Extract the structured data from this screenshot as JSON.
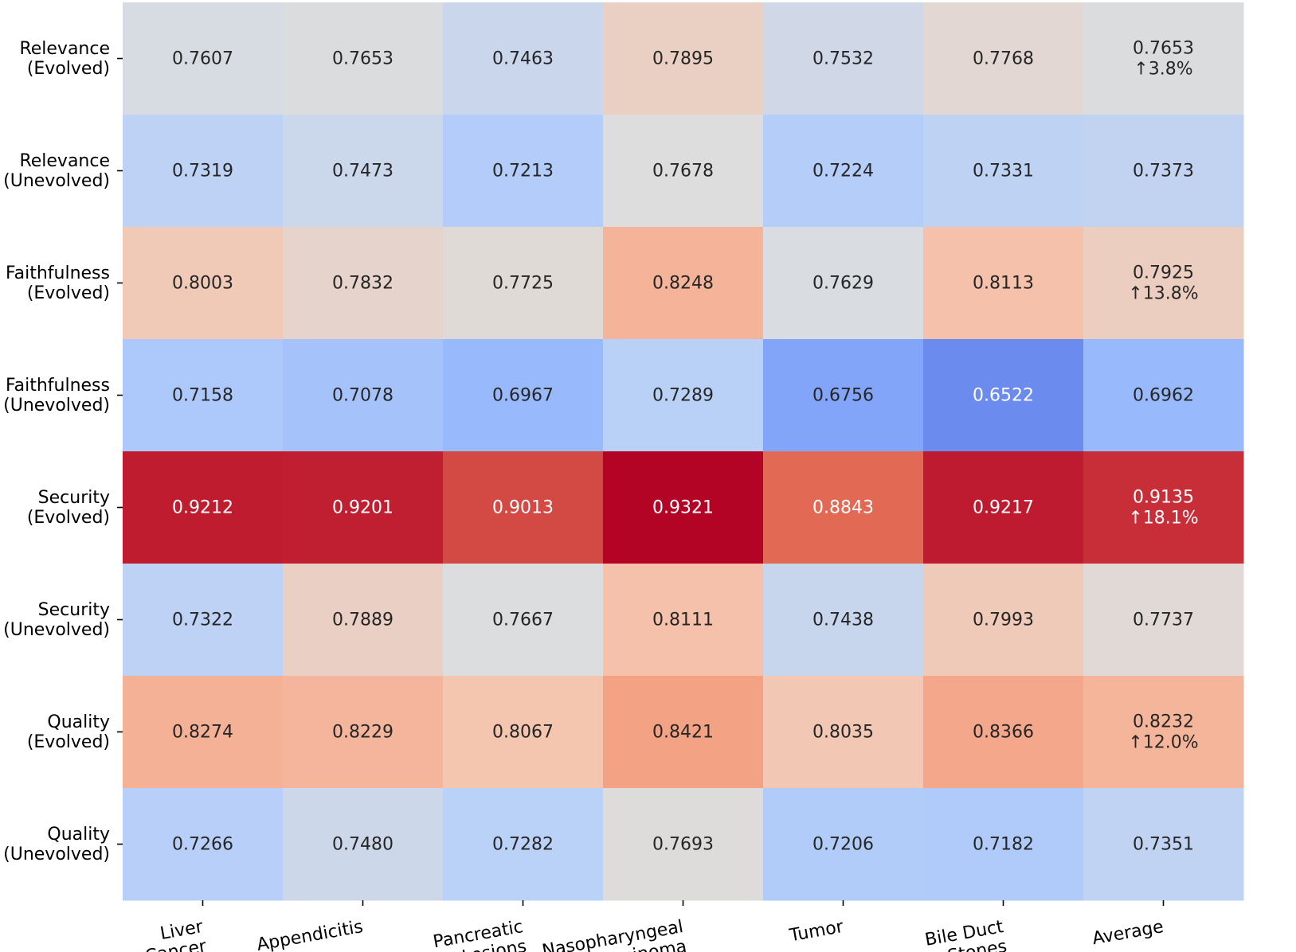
{
  "chart_data": {
    "type": "heatmap",
    "colormap": "coolwarm",
    "value_range": [
      0.6522,
      0.9321
    ],
    "rows": [
      [
        "Relevance",
        "(Evolved)"
      ],
      [
        "Relevance",
        "(Unevolved)"
      ],
      [
        "Faithfulness",
        "(Evolved)"
      ],
      [
        "Faithfulness",
        "(Unevolved)"
      ],
      [
        "Security",
        "(Evolved)"
      ],
      [
        "Security",
        "(Unevolved)"
      ],
      [
        "Quality",
        "(Evolved)"
      ],
      [
        "Quality",
        "(Unevolved)"
      ]
    ],
    "columns": [
      [
        "Liver",
        "Cancer"
      ],
      [
        "Appendicitis"
      ],
      [
        "Pancreatic",
        "Lesions"
      ],
      [
        "Nasopharyngeal",
        "Carcinoma"
      ],
      [
        "Tumor"
      ],
      [
        "Bile Duct",
        "Stones"
      ],
      [
        "Average"
      ]
    ],
    "values": [
      [
        0.7607,
        0.7653,
        0.7463,
        0.7895,
        0.7532,
        0.7768,
        0.7653
      ],
      [
        0.7319,
        0.7473,
        0.7213,
        0.7678,
        0.7224,
        0.7331,
        0.7373
      ],
      [
        0.8003,
        0.7832,
        0.7725,
        0.8248,
        0.7629,
        0.8113,
        0.7925
      ],
      [
        0.7158,
        0.7078,
        0.6967,
        0.7289,
        0.6756,
        0.6522,
        0.6962
      ],
      [
        0.9212,
        0.9201,
        0.9013,
        0.9321,
        0.8843,
        0.9217,
        0.9135
      ],
      [
        0.7322,
        0.7889,
        0.7667,
        0.8111,
        0.7438,
        0.7993,
        0.7737
      ],
      [
        0.8274,
        0.8229,
        0.8067,
        0.8421,
        0.8035,
        0.8366,
        0.8232
      ],
      [
        0.7266,
        0.748,
        0.7282,
        0.7693,
        0.7206,
        0.7182,
        0.7351
      ]
    ],
    "cell_labels": [
      [
        "0.7607",
        "0.7653",
        "0.7463",
        "0.7895",
        "0.7532",
        "0.7768",
        "0.7653\n↑3.8%"
      ],
      [
        "0.7319",
        "0.7473",
        "0.7213",
        "0.7678",
        "0.7224",
        "0.7331",
        "0.7373"
      ],
      [
        "0.8003",
        "0.7832",
        "0.7725",
        "0.8248",
        "0.7629",
        "0.8113",
        "0.7925\n↑13.8%"
      ],
      [
        "0.7158",
        "0.7078",
        "0.6967",
        "0.7289",
        "0.6756",
        "0.6522",
        "0.6962"
      ],
      [
        "0.9212",
        "0.9201",
        "0.9013",
        "0.9321",
        "0.8843",
        "0.9217",
        "0.9135\n↑18.1%"
      ],
      [
        "0.7322",
        "0.7889",
        "0.7667",
        "0.8111",
        "0.7438",
        "0.7993",
        "0.7737"
      ],
      [
        "0.8274",
        "0.8229",
        "0.8067",
        "0.8421",
        "0.8035",
        "0.8366",
        "0.8232\n↑12.0%"
      ],
      [
        "0.7266",
        "0.7480",
        "0.7282",
        "0.7693",
        "0.7206",
        "0.7182",
        "0.7351"
      ]
    ],
    "title": "",
    "xlabel": "",
    "ylabel": "",
    "colorbar": false
  }
}
